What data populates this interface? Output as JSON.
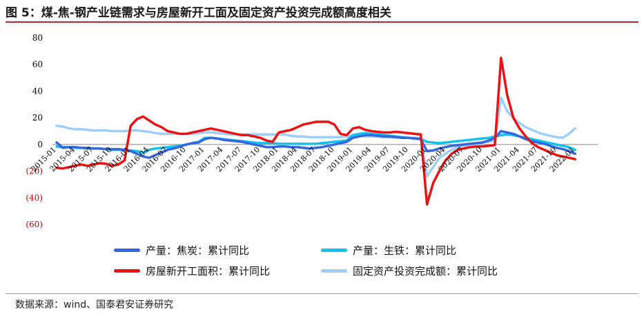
{
  "figure": {
    "title": "图 5：煤-焦-钢产业链需求与房屋新开工面及固定资产投资完成额高度相关",
    "source": "数据来源：wind、国泰君安证券研究"
  },
  "chart_data": {
    "type": "line",
    "title": "",
    "xlabel": "",
    "ylabel": "",
    "ylim": [
      -60,
      80
    ],
    "yticks": [
      80,
      60,
      40,
      20,
      0,
      -20,
      -40,
      -60
    ],
    "ytick_labels": [
      "80",
      "60",
      "40",
      "20",
      "0",
      "(20)",
      "(40)",
      "(60)"
    ],
    "xtick_labels": [
      "2015-01",
      "2015-04",
      "2015-07",
      "2015-10",
      "2016-01",
      "2016-04",
      "2016-07",
      "2016-10",
      "2017-01",
      "2017-04",
      "2017-07",
      "2017-10",
      "2018-01",
      "2018-04",
      "2018-07",
      "2018-10",
      "2019-01",
      "2019-04",
      "2019-07",
      "2019-10",
      "2020-01",
      "2020-04",
      "2020-07",
      "2020-10",
      "2021-01",
      "2021-04",
      "2021-07",
      "2021-10",
      "2022-01"
    ],
    "x_start": "2015-01",
    "x_end": "2022-04",
    "grid": false,
    "legend_position": "bottom",
    "series": [
      {
        "name": "产量：焦炭：累计同比",
        "color": "#3366e0",
        "values": [
          1.5,
          -2.5,
          -2,
          -2,
          -2.5,
          -2.5,
          -3,
          -3,
          -3.5,
          -3.5,
          -3.5,
          -4,
          -5,
          -7,
          -9,
          -10,
          -8,
          -6,
          -4,
          -3,
          -1.5,
          0,
          1,
          1.5,
          4,
          5,
          4.5,
          3.5,
          3,
          2.5,
          2,
          1,
          0,
          -1,
          -2,
          -2,
          -1.5,
          -1.5,
          -2,
          -2,
          -2.5,
          -3,
          -2.5,
          -2,
          -1,
          0,
          1,
          2,
          5,
          6,
          7,
          7,
          6.5,
          6,
          6,
          5.5,
          5,
          5,
          4.5,
          4,
          -5,
          -4.5,
          -3,
          -2,
          -1,
          -0.5,
          0,
          0.5,
          1,
          1.5,
          3,
          5,
          10,
          9,
          8,
          6,
          4,
          2.5,
          1.5,
          0.5,
          -1,
          -2.5,
          -3.5,
          -5,
          -7
        ]
      },
      {
        "name": "产量：生铁：累计同比",
        "color": "#12c2ea",
        "values": [
          -1.5,
          -2,
          -2,
          -2.5,
          -2.5,
          -3,
          -3,
          -3,
          -3.5,
          -4,
          -4,
          -4,
          -4.5,
          -5,
          -6.5,
          -4,
          -3,
          -2.5,
          -2,
          -1.5,
          -1,
          0,
          1,
          2,
          5,
          5,
          4.5,
          4,
          3.5,
          3,
          2.5,
          2,
          1.5,
          1,
          1,
          1,
          0.5,
          0.5,
          0.5,
          0.5,
          0.5,
          0.5,
          0.5,
          1,
          1.5,
          2,
          2.5,
          3,
          7,
          8,
          8.5,
          8,
          7.5,
          7,
          6.5,
          6,
          5.5,
          5,
          4.5,
          4,
          2,
          1.5,
          1,
          1.5,
          2,
          2.5,
          3,
          3.5,
          4,
          4.5,
          5,
          6,
          7,
          7.5,
          7,
          6,
          5,
          4,
          3,
          2,
          1,
          0,
          -1,
          -2,
          -4
        ]
      },
      {
        "name": "房屋新开工面积：累计同比",
        "color": "#ee1111",
        "values": [
          -17.5,
          -18,
          -17,
          -16,
          -15,
          -16,
          -15,
          -14,
          -14.5,
          -16,
          -15,
          -12,
          14,
          19,
          21,
          18,
          15,
          13,
          10,
          9,
          8,
          8,
          9,
          10,
          11,
          12,
          11,
          10,
          9,
          8,
          7,
          7,
          6,
          5,
          3,
          2,
          9,
          10,
          11,
          13,
          15,
          16,
          17,
          17,
          17,
          15,
          8,
          7,
          12,
          13,
          11,
          10,
          9.5,
          9,
          9,
          9.5,
          9,
          8.5,
          8,
          7.5,
          -45,
          -29,
          -20,
          -12,
          -7,
          -4,
          -3,
          -2,
          -1.5,
          -1.5,
          -1,
          -0.5,
          65,
          37,
          20,
          12,
          6,
          1,
          -2,
          -4,
          -6,
          -8,
          -9,
          -10,
          -11
        ]
      },
      {
        "name": "固定资产投资完成额：累计同比",
        "color": "#9ecef9",
        "values": [
          14,
          13.5,
          12,
          11.5,
          11.5,
          11,
          10.5,
          10.5,
          10.5,
          10,
          10,
          10,
          10.5,
          10.5,
          10,
          9.5,
          8.5,
          8,
          8,
          8,
          8,
          8,
          8,
          8.5,
          9,
          9,
          8.5,
          8,
          7.5,
          7.5,
          7.5,
          7.5,
          7.5,
          7.5,
          7.5,
          7.5,
          7.5,
          7.5,
          6.5,
          6,
          6,
          5.5,
          5.5,
          5.5,
          5.5,
          5.5,
          5.5,
          6,
          6.5,
          6.5,
          6,
          6,
          6,
          5.5,
          5.5,
          5.5,
          5,
          5,
          5,
          5,
          -24,
          -17,
          -10,
          -7,
          -4,
          -2,
          -1,
          0,
          0.5,
          1.5,
          2,
          3,
          35,
          25,
          20,
          16,
          13,
          11,
          9,
          7.5,
          6.5,
          5.5,
          5,
          8,
          12
        ]
      }
    ]
  }
}
